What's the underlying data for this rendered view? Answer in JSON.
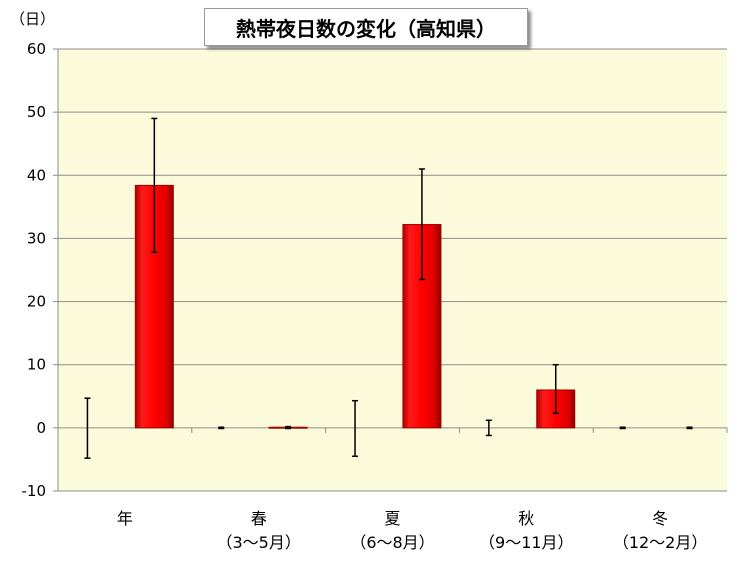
{
  "chart_data": {
    "type": "bar",
    "title": "熱帯夜日数の変化（高知県）",
    "y_unit": "（日）",
    "ylim": [
      -10,
      60
    ],
    "y_ticks": [
      "60",
      "50",
      "40",
      "30",
      "20",
      "10",
      "0",
      "-10"
    ],
    "grid": true,
    "categories": [
      {
        "name": "年",
        "sub": ""
      },
      {
        "name": "春",
        "sub": "（3～5月）"
      },
      {
        "name": "夏",
        "sub": "（6～8月）"
      },
      {
        "name": "秋",
        "sub": "（9～11月）"
      },
      {
        "name": "冬",
        "sub": "（12～2月）"
      }
    ],
    "series": [
      {
        "values": [
          0,
          0,
          0,
          0,
          0
        ],
        "error_low": [
          -4.8,
          -0.1,
          -4.5,
          -1.2,
          -0.1
        ],
        "error_high": [
          4.7,
          0.1,
          4.3,
          1.2,
          0.1
        ]
      },
      {
        "values": [
          38.4,
          0.1,
          32.2,
          6.0,
          0
        ],
        "error_low": [
          27.8,
          -0.1,
          23.5,
          2.3,
          -0.1
        ],
        "error_high": [
          49.0,
          0.2,
          41.0,
          10.0,
          0.1
        ]
      }
    ],
    "colors": {
      "bar": "#ff0000",
      "bar_dark": "#a00000",
      "plot_bg": "#fbfbdc",
      "grid": "#8c8c8c",
      "axis": "#8c8c8c"
    }
  }
}
